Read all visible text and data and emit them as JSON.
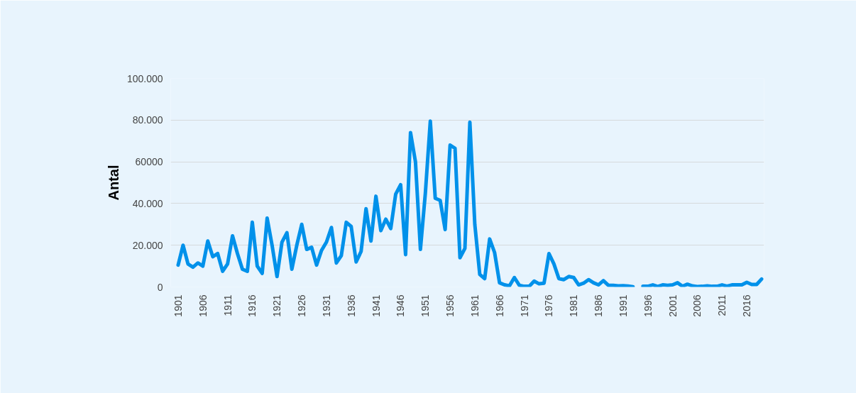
{
  "chart_data": {
    "type": "line",
    "ylabel": "Antal",
    "x": [
      1901,
      1902,
      1903,
      1904,
      1905,
      1906,
      1907,
      1908,
      1909,
      1910,
      1911,
      1912,
      1913,
      1914,
      1915,
      1916,
      1917,
      1918,
      1919,
      1920,
      1921,
      1922,
      1923,
      1924,
      1925,
      1926,
      1927,
      1928,
      1929,
      1930,
      1931,
      1932,
      1933,
      1934,
      1935,
      1936,
      1937,
      1938,
      1939,
      1940,
      1941,
      1942,
      1943,
      1944,
      1945,
      1946,
      1947,
      1948,
      1949,
      1950,
      1951,
      1952,
      1953,
      1954,
      1955,
      1956,
      1957,
      1958,
      1959,
      1960,
      1961,
      1962,
      1963,
      1964,
      1965,
      1966,
      1967,
      1968,
      1969,
      1970,
      1971,
      1972,
      1973,
      1974,
      1975,
      1976,
      1977,
      1978,
      1979,
      1980,
      1981,
      1982,
      1983,
      1984,
      1985,
      1986,
      1987,
      1988,
      1989,
      1990,
      1991,
      1992,
      1993,
      1994,
      1995,
      1996,
      1997,
      1998,
      1999,
      2000,
      2001,
      2002,
      2003,
      2004,
      2005,
      2006,
      2007,
      2008,
      2009,
      2010,
      2011,
      2012,
      2013,
      2014,
      2015,
      2016,
      2017,
      2018,
      2019
    ],
    "series": [
      {
        "color": "#0091ea",
        "values": [
          10500,
          20000,
          11000,
          9500,
          11500,
          10000,
          22000,
          14500,
          16000,
          7500,
          11000,
          24500,
          16000,
          8500,
          7500,
          31000,
          10000,
          6500,
          33000,
          20000,
          5000,
          21500,
          26000,
          8500,
          20000,
          30000,
          18000,
          19000,
          10500,
          17500,
          21500,
          28500,
          11500,
          15000,
          31000,
          29000,
          12000,
          17000,
          37500,
          22000,
          43500,
          27000,
          32500,
          28000,
          44500,
          49000,
          15500,
          74000,
          60000,
          18000,
          45000,
          79500,
          42500,
          41500,
          27500,
          68000,
          66500,
          14000,
          18500,
          79000,
          30000,
          6000,
          4000,
          23000,
          16500,
          2000,
          1000,
          500,
          4500,
          800,
          300,
          300,
          2800,
          1500,
          1800,
          16000,
          11000,
          4000,
          3500,
          5000,
          4500,
          1000,
          1800,
          3500,
          2000,
          1000,
          3000,
          800,
          800,
          500,
          600,
          400,
          100,
          null,
          300,
          300,
          1000,
          200,
          1000,
          800,
          1000,
          2000,
          300,
          1300,
          500,
          200,
          300,
          500,
          300,
          300,
          1000,
          400,
          1000,
          1000,
          1000,
          2200,
          1200,
          1200,
          3800
        ]
      }
    ],
    "xlim": [
      1899.5,
      2019.5
    ],
    "xticks": [
      1901,
      1906,
      1911,
      1916,
      1921,
      1926,
      1931,
      1936,
      1941,
      1946,
      1951,
      1956,
      1961,
      1966,
      1971,
      1976,
      1981,
      1986,
      1991,
      1996,
      2001,
      2006,
      2011,
      2016
    ],
    "ylim": [
      0,
      100000
    ],
    "yticks": [
      0,
      {
        "value": 20000,
        "label": "20.000"
      },
      {
        "value": 40000,
        "label": "40.000"
      },
      60000,
      {
        "value": 80000,
        "label": "80.000"
      },
      {
        "value": 100000,
        "label": "100.000"
      }
    ],
    "grid": "y",
    "line_style": "solid"
  }
}
